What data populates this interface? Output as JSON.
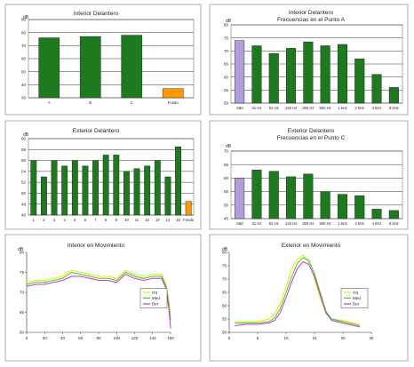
{
  "colors": {
    "bar_green": "#1f7a1f",
    "bar_orange": "#ff9900",
    "bar_lavender": "#b39ddb",
    "line_yellow": "#e8e800",
    "line_green": "#33cc33",
    "line_magenta": "#cc33cc",
    "frame": "#999999"
  },
  "chart_data": [
    {
      "type": "bar",
      "title": "Interior Delantero",
      "ylabel": "dB",
      "categories": [
        "A",
        "B",
        "C",
        "Fondo"
      ],
      "values": [
        76,
        77,
        78,
        37
      ],
      "highlight": {
        "3": "orange"
      },
      "ylim": [
        30,
        90
      ],
      "yticks": [
        30,
        40,
        50,
        60,
        70,
        80,
        90
      ],
      "grid": true
    },
    {
      "type": "bar",
      "title": "Interior Delantero",
      "subtitle": "Frecuencias en el Punto A",
      "ylabel": "dB",
      "categories": [
        "ABd",
        "31 Hz",
        "63 Hz",
        "125 Hz",
        "250 Hz",
        "500 Hz",
        "1 kHz",
        "2 kHz",
        "4 kHz",
        "8 kHz"
      ],
      "values": [
        74,
        72,
        69,
        71,
        73.5,
        72,
        72.5,
        67,
        61,
        56
      ],
      "highlight": {
        "0": "lavender"
      },
      "ylim": [
        50,
        80
      ],
      "yticks": [
        50,
        55,
        60,
        65,
        70,
        75,
        80
      ],
      "grid": true
    },
    {
      "type": "bar",
      "title": "Exterior Delantero",
      "ylabel": "dB",
      "categories": [
        "1",
        "2",
        "3",
        "4",
        "5",
        "6",
        "7",
        "8",
        "9",
        "10",
        "11",
        "12",
        "13",
        "14",
        "15",
        "Fondo"
      ],
      "values": [
        56,
        53,
        56,
        55,
        56,
        55,
        56,
        57,
        57,
        54,
        54.5,
        55,
        56,
        53,
        58.5,
        48.5
      ],
      "highlight": {
        "15": "orange"
      },
      "ylim": [
        46,
        60
      ],
      "yticks": [
        46,
        48,
        50,
        52,
        54,
        56,
        58,
        60
      ],
      "grid": true
    },
    {
      "type": "bar",
      "title": "Exterior Delantero",
      "subtitle": "Frecuencias en el Punto C",
      "ylabel": "dB",
      "categories": [
        "ABd",
        "31 Hz",
        "63 Hz",
        "125 Hz",
        "250 Hz",
        "500 Hz",
        "1 kHz",
        "2 kHz",
        "4 kHz",
        "8 kHz"
      ],
      "values": [
        60,
        63,
        62.5,
        60.5,
        61.5,
        55,
        54,
        53.5,
        48.5,
        48
      ],
      "highlight": {
        "0": "lavender"
      },
      "ylim": [
        45,
        70
      ],
      "yticks": [
        45,
        50,
        55,
        60,
        65,
        70
      ],
      "grid": true
    },
    {
      "type": "line",
      "title": "Interior en Movimiento",
      "ylabel": "dB",
      "xlim": [
        0,
        160
      ],
      "xticks": [
        0,
        20,
        40,
        60,
        80,
        100,
        120,
        140,
        160
      ],
      "ylim": [
        60,
        80
      ],
      "yticks": [
        60,
        65,
        70,
        75,
        80
      ],
      "grid": false,
      "legend": "right",
      "series": [
        {
          "name": "Izq",
          "color": "yellow",
          "x": [
            0,
            10,
            20,
            30,
            40,
            50,
            60,
            70,
            80,
            90,
            100,
            110,
            120,
            130,
            140,
            150,
            155,
            158,
            160
          ],
          "y": [
            72.5,
            73,
            73,
            73.5,
            74,
            75.5,
            75,
            74.5,
            74,
            74,
            73.5,
            75.5,
            74.5,
            74,
            74.5,
            74.5,
            72,
            68,
            64
          ]
        },
        {
          "name": "Med",
          "color": "green",
          "x": [
            0,
            10,
            20,
            30,
            40,
            50,
            60,
            70,
            80,
            90,
            100,
            110,
            120,
            130,
            140,
            150,
            155,
            158,
            160
          ],
          "y": [
            72,
            72.5,
            72.5,
            73,
            73.5,
            75,
            74.5,
            74,
            73.5,
            73.5,
            73,
            75,
            74,
            73.5,
            74,
            74,
            71.5,
            67,
            63
          ]
        },
        {
          "name": "Der",
          "color": "magenta",
          "x": [
            0,
            10,
            20,
            30,
            40,
            50,
            60,
            70,
            80,
            90,
            100,
            110,
            120,
            130,
            140,
            150,
            155,
            158,
            160
          ],
          "y": [
            71.5,
            72,
            72,
            72.5,
            73,
            74,
            74,
            73.5,
            73,
            73,
            72.5,
            74.5,
            73.5,
            73,
            73.5,
            73.5,
            71,
            66,
            61
          ]
        }
      ]
    },
    {
      "type": "line",
      "title": "Exterior en Movimiento",
      "ylabel": "dB",
      "xlim": [
        0,
        25
      ],
      "xticks": [
        0,
        5,
        10,
        15,
        20,
        25
      ],
      "ylim": [
        50,
        80
      ],
      "yticks": [
        50,
        55,
        60,
        65,
        70,
        75,
        80
      ],
      "grid": false,
      "legend": "right",
      "series": [
        {
          "name": "Izq",
          "color": "yellow",
          "x": [
            1,
            3,
            5,
            7,
            8,
            9,
            10,
            11,
            12,
            13,
            14,
            15,
            16,
            17,
            18,
            20,
            22,
            23
          ],
          "y": [
            54,
            54,
            54,
            55,
            57,
            61,
            67,
            74,
            77.5,
            79,
            76,
            70,
            63,
            57,
            55,
            54.5,
            53.5,
            53
          ]
        },
        {
          "name": "Med",
          "color": "green",
          "x": [
            1,
            3,
            5,
            7,
            8,
            9,
            10,
            11,
            12,
            13,
            14,
            15,
            16,
            17,
            18,
            20,
            22,
            23
          ],
          "y": [
            53.5,
            53.5,
            53.5,
            54,
            55.5,
            59,
            65,
            71,
            76,
            78,
            77,
            72,
            65,
            58,
            55,
            54,
            53,
            52.5
          ]
        },
        {
          "name": "Der",
          "color": "magenta",
          "x": [
            1,
            3,
            5,
            7,
            8,
            9,
            10,
            11,
            12,
            13,
            14,
            15,
            16,
            17,
            18,
            20,
            22,
            23
          ],
          "y": [
            52.5,
            53,
            53,
            53.5,
            54.5,
            57.5,
            63,
            69,
            74,
            76.5,
            75.5,
            71,
            64,
            57.5,
            54.5,
            53.5,
            52.5,
            52
          ]
        }
      ]
    }
  ]
}
